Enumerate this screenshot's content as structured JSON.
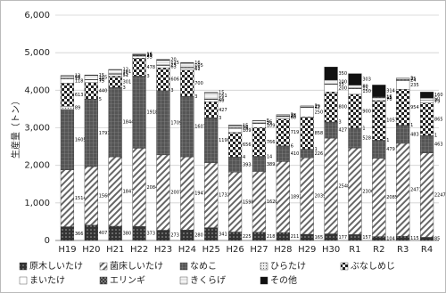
{
  "chart_data": {
    "type": "stacked-bar",
    "y_label": "生産量（トン）",
    "categories": [
      "H19",
      "H20",
      "H21",
      "H22",
      "H23",
      "H24",
      "H25",
      "H26",
      "H27",
      "H28",
      "H29",
      "H30",
      "R1",
      "R2",
      "R3",
      "R4"
    ],
    "ylim": [
      0,
      6000
    ],
    "yticks": [
      0,
      {
        "value": 1000,
        "label": "1,000"
      },
      {
        "value": 2000,
        "label": "2,000"
      },
      {
        "value": 3000,
        "label": "3,000"
      },
      {
        "value": 4000,
        "label": "4,000"
      },
      {
        "value": 5000,
        "label": "5,000"
      },
      {
        "value": 6000,
        "label": "6,000"
      }
    ],
    "grid": true,
    "series": [
      {
        "name": "原木しいたけ",
        "pattern": "dark-dots",
        "values": [
          366,
          407,
          380,
          373,
          273,
          280,
          341,
          225,
          218,
          211,
          165,
          177,
          157,
          104,
          115,
          85
        ]
      },
      {
        "name": "菌床しいたけ",
        "pattern": "diagonal",
        "values": [
          1514,
          1560,
          1847,
          2084,
          2007,
          1947,
          1732,
          1598,
          1620,
          1891,
          2039,
          2548,
          2306,
          2085,
          2471,
          2247
        ]
      },
      {
        "name": "なめこ",
        "pattern": "dark-grid",
        "values": [
          1605,
          1791,
          1844,
          1918,
          1709,
          1607,
          1190,
          393,
          389,
          410,
          226,
          427,
          528,
          479,
          483,
          463
        ]
      },
      {
        "name": "ひらたけ",
        "pattern": "light-dots",
        "values": [
          89,
          5,
          3,
          3,
          3,
          3,
          3,
          4,
          14,
          6,
          1,
          3,
          1,
          1,
          1,
          1
        ]
      },
      {
        "name": "ぶなしめじ",
        "pattern": "checker",
        "values": [
          613,
          440,
          301,
          478,
          606,
          700,
          427,
          656,
          766,
          719,
          858,
          800,
          900,
          1057,
          954,
          865
        ]
      },
      {
        "name": "まいたけ",
        "pattern": "white",
        "values": [
          118,
          75,
          51,
          53,
          63,
          61,
          60,
          109,
          109,
          60,
          250,
          200,
          150,
          70,
          235,
          79
        ]
      },
      {
        "name": "エリンギ",
        "pattern": "cross",
        "values": [
          15,
          10,
          15,
          23,
          13,
          15,
          16,
          16,
          15,
          15,
          12,
          15,
          15,
          15,
          24,
          2
        ]
      },
      {
        "name": "きくらげ",
        "pattern": "light-hatch",
        "values": [
          60,
          105,
          101,
          15,
          125,
          105,
          161,
          56,
          56,
          33,
          29,
          100,
          80,
          15,
          35,
          50
        ]
      },
      {
        "name": "その他",
        "pattern": "black",
        "values": [
          12,
          15,
          12,
          16,
          20,
          16,
          15,
          15,
          5,
          2,
          2,
          350,
          303,
          314,
          2,
          160
        ]
      }
    ]
  }
}
